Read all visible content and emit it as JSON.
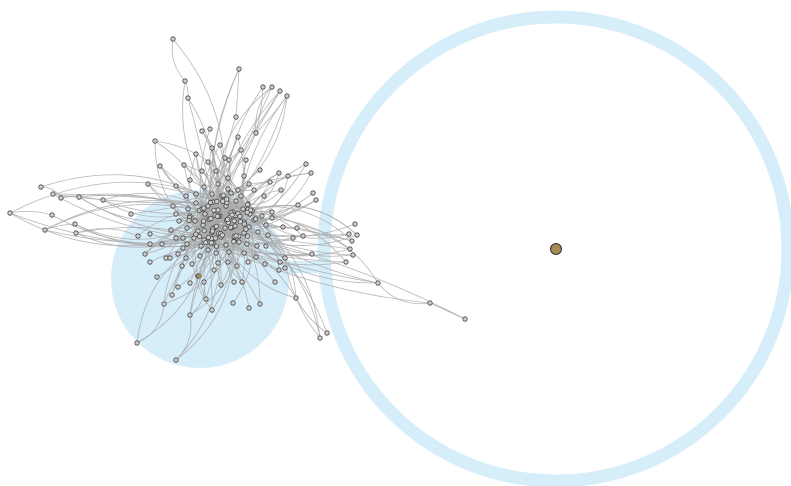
{
  "colors": {
    "background": "#ffffff",
    "highlight": "#d6edfa",
    "node_fill": "#cfcfcf",
    "node_stroke": "#444444",
    "focus_node": "#a68b55",
    "edge": "#a9a9a9"
  },
  "diagram": {
    "type": "network-graph",
    "description_shapes": [
      "filled-circle-highlight",
      "ring-highlight",
      "connector-bar"
    ],
    "node_count_visible": 190,
    "focus_nodes": 2
  }
}
